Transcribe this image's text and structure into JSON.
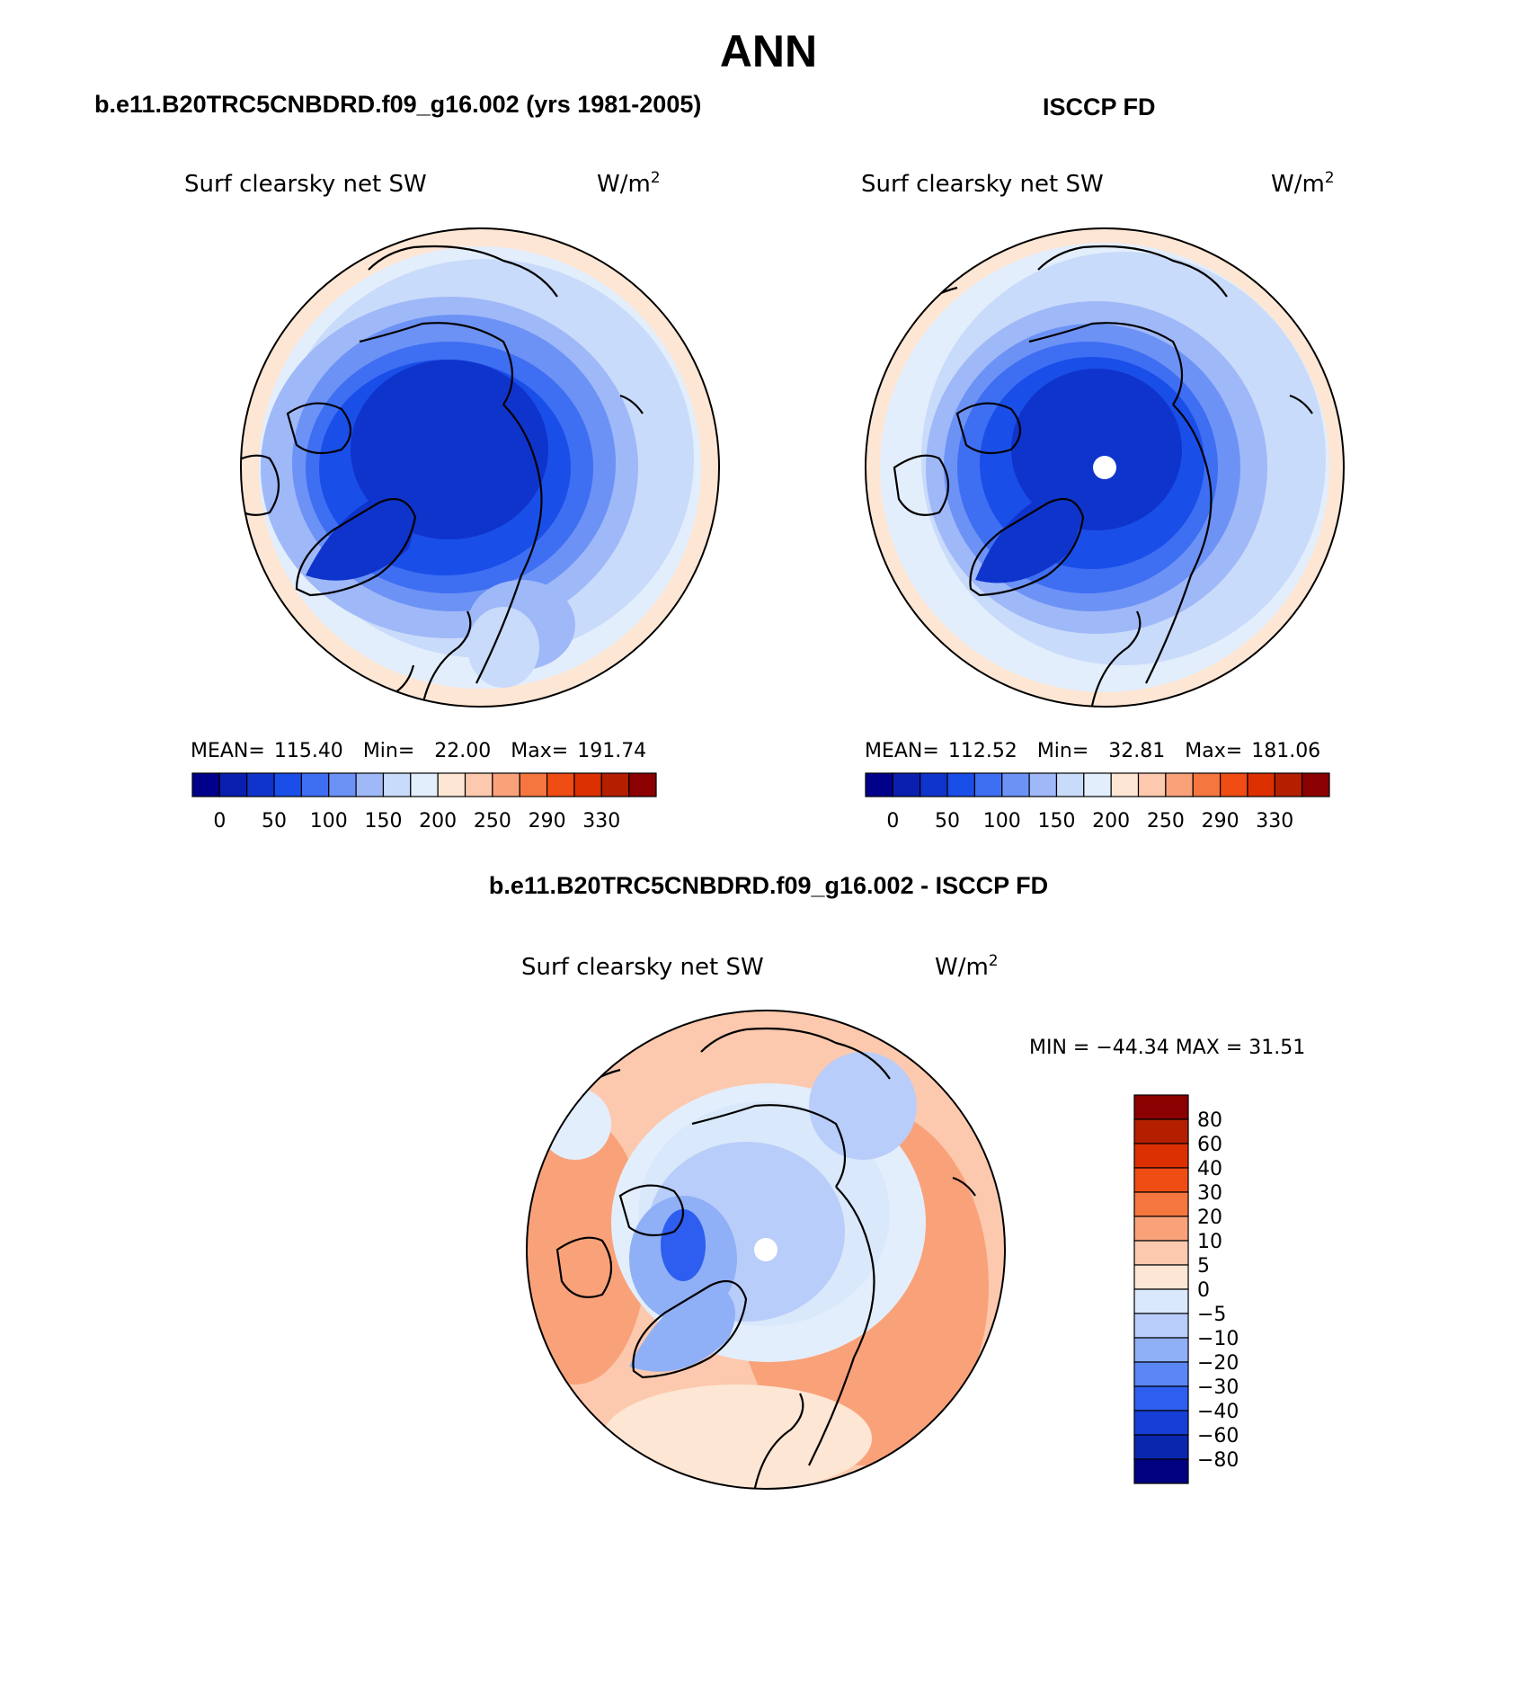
{
  "title": "ANN",
  "panels": [
    {
      "case": "b.e11.B20TRC5CNBDRD.f09_g16.002 (yrs 1981-2005)",
      "variable": "Surf clearsky net SW",
      "units": "W/m",
      "units_exp": "2",
      "stats": {
        "mean": "115.40",
        "min": "22.00",
        "max": "191.74"
      },
      "stats_labels": {
        "mean": "MEAN=",
        "min": "Min=",
        "max": "Max="
      }
    },
    {
      "case": "ISCCP FD",
      "variable": "Surf clearsky net SW",
      "units": "W/m",
      "units_exp": "2",
      "stats": {
        "mean": "112.52",
        "min": "32.81",
        "max": "181.06"
      },
      "stats_labels": {
        "mean": "MEAN=",
        "min": "Min=",
        "max": "Max="
      }
    }
  ],
  "diff_panel": {
    "title": "b.e11.B20TRC5CNBDRD.f09_g16.002 - ISCCP FD",
    "variable": "Surf clearsky net SW",
    "units": "W/m",
    "units_exp": "2",
    "minmax_label": "MIN = −44.34 MAX =   31.51"
  },
  "colorbar_abs": {
    "colors": [
      "#00008b",
      "#0a1fb0",
      "#0f34cc",
      "#1a4ee8",
      "#3e6ef2",
      "#6c92f5",
      "#9fb8f8",
      "#c9dbfa",
      "#e3eefc",
      "#fde6d4",
      "#fcc9ae",
      "#f9a27a",
      "#f5763f",
      "#ef4d14",
      "#dc3000",
      "#b41f00",
      "#8b0000"
    ],
    "tick_labels": [
      "0",
      "50",
      "100",
      "150",
      "200",
      "250",
      "290",
      "330"
    ]
  },
  "colorbar_diff": {
    "colors": [
      "#8b0000",
      "#b41f00",
      "#dc3000",
      "#ef4d14",
      "#f5763f",
      "#f9a27a",
      "#fcc9ae",
      "#fde6d4",
      "#d9e8fb",
      "#b8cdf9",
      "#8fb0f6",
      "#5c86f3",
      "#2d5ef0",
      "#153fd6",
      "#0a25ae",
      "#000080"
    ],
    "tick_labels": [
      "80",
      "60",
      "40",
      "30",
      "20",
      "10",
      "5",
      "0",
      "−5",
      "−10",
      "−20",
      "−30",
      "−40",
      "−60",
      "−80"
    ]
  }
}
